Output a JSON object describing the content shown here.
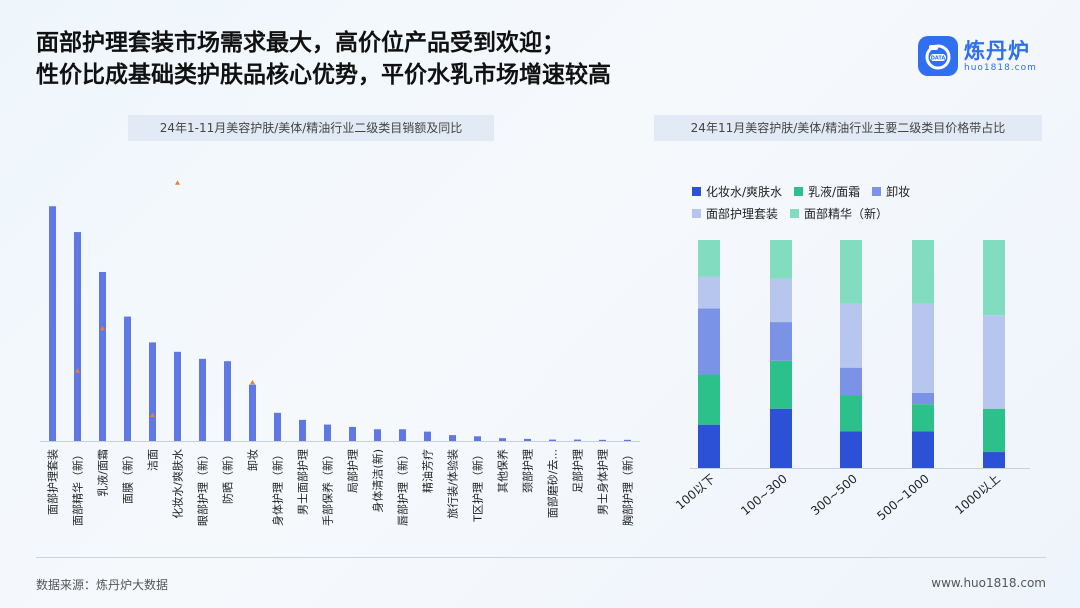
{
  "title": {
    "line1": "面部护理套装市场需求最大，高价位产品受到欢迎；",
    "line2": "性价比成基础类护肤品核心优势，平价水乳市场增速较高"
  },
  "logo": {
    "name": "炼丹炉",
    "url": "huo1818.com",
    "badge": "DATA"
  },
  "left_subtitle": "24年1-11月美容护肤/美体/精油行业二级类目销额及同比",
  "right_subtitle": "24年11月美容护肤/美体/精油行业主要二级类目价格带占比",
  "footer": {
    "source": "数据来源：炼丹炉大数据",
    "site": "www.huo1818.com"
  },
  "colors": {
    "bar": "#5f78e4",
    "marker": "#f07c3c",
    "toner": "#2c50d6",
    "lotion": "#2cc18a",
    "remover": "#7b93e6",
    "set": "#b7c6ef",
    "essence": "#82dcc0"
  },
  "chart_data": [
    {
      "type": "bar",
      "title": "24年1-11月美容护肤/美体/精油行业二级类目销额及同比",
      "categories": [
        "面部护理套装",
        "面部精华（新）",
        "乳液/面霜",
        "面膜（新）",
        "洁面",
        "化妆水/爽肤水",
        "眼部护理（新）",
        "防晒（新）",
        "卸妆",
        "身体护理（新）",
        "男士面部护理",
        "手部保养（新）",
        "局部护理",
        "身体清洁(新)",
        "唇部护理（新）",
        "精油芳疗",
        "旅行装/体验装",
        "T区护理（新）",
        "其他保养",
        "颈部护理",
        "面部磨砂/去...",
        "足部护理",
        "男士身体护理",
        "胸部护理（新）"
      ],
      "values": [
        100,
        89,
        72,
        53,
        42,
        38,
        35,
        34,
        24,
        12,
        9,
        7,
        6,
        5,
        5,
        4,
        2.5,
        2,
        1.2,
        0.9,
        0.6,
        0.6,
        0.5,
        0.5
      ],
      "markers": [
        {
          "category": "面部精华（新）",
          "value": 30
        },
        {
          "category": "乳液/面霜",
          "value": 48
        },
        {
          "category": "洁面",
          "value": 11
        },
        {
          "category": "化妆水/爽肤水",
          "value": 110
        },
        {
          "category": "卸妆",
          "value": 25
        }
      ],
      "ylim": [
        0,
        118
      ]
    },
    {
      "type": "bar",
      "stacked": true,
      "percent": true,
      "title": "24年11月美容护肤/美体/精油行业主要二级类目价格带占比",
      "categories": [
        "100以下",
        "100~300",
        "300~500",
        "500~1000",
        "1000以上"
      ],
      "series": [
        {
          "name": "化妆水/爽肤水",
          "values": [
            19,
            26,
            16,
            16,
            7
          ]
        },
        {
          "name": "乳液/面霜",
          "values": [
            22,
            21,
            16,
            12,
            19
          ]
        },
        {
          "name": "卸妆",
          "values": [
            29,
            17,
            12,
            5,
            0
          ]
        },
        {
          "name": "面部护理套装",
          "values": [
            14,
            19,
            28,
            39,
            41
          ]
        },
        {
          "name": "面部精华（新）",
          "values": [
            16,
            17,
            28,
            28,
            33
          ]
        }
      ],
      "ylim": [
        0,
        100
      ],
      "legend": "top"
    }
  ]
}
